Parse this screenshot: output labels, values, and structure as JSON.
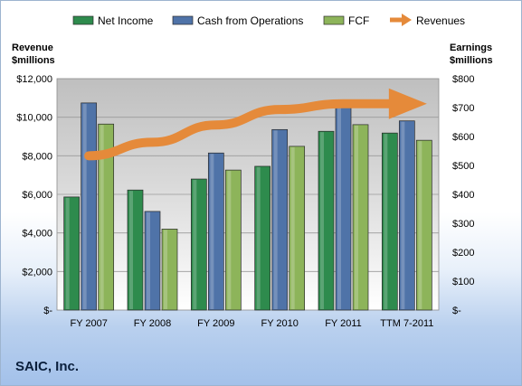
{
  "company": "SAIC, Inc.",
  "chart_data": {
    "type": "bar",
    "categories": [
      "FY 2007",
      "FY 2008",
      "FY 2009",
      "FY 2010",
      "FY 2011",
      "TTM 7-2011"
    ],
    "series": [
      {
        "name": "Net Income",
        "axis": "right",
        "color": "#2e8b4d",
        "values": [
          391,
          415,
          453,
          497,
          618,
          612
        ]
      },
      {
        "name": "Cash from Operations",
        "axis": "right",
        "color": "#4f73a8",
        "values": [
          716,
          341,
          543,
          624,
          717,
          654
        ]
      },
      {
        "name": "FCF",
        "axis": "right",
        "color": "#8db45a",
        "values": [
          643,
          280,
          484,
          566,
          641,
          587
        ]
      }
    ],
    "trend": {
      "name": "Revenues",
      "axis": "left",
      "color": "#e58a3a",
      "values": [
        8000,
        8700,
        9600,
        10400,
        10700,
        10700
      ]
    },
    "left_axis": {
      "title_lines": [
        "Revenue",
        "$millions"
      ],
      "ylim": [
        0,
        12000
      ],
      "ticks": [
        "$-",
        "$2,000",
        "$4,000",
        "$6,000",
        "$8,000",
        "$10,000",
        "$12,000"
      ]
    },
    "right_axis": {
      "title_lines": [
        "Earnings",
        "$millions"
      ],
      "ylim": [
        0,
        800
      ],
      "ticks": [
        "$-",
        "$100",
        "$200",
        "$300",
        "$400",
        "$500",
        "$600",
        "$700",
        "$800"
      ]
    },
    "legend": [
      "Net Income",
      "Cash from Operations",
      "FCF",
      "Revenues"
    ],
    "legend_position": "top",
    "grid": true
  }
}
